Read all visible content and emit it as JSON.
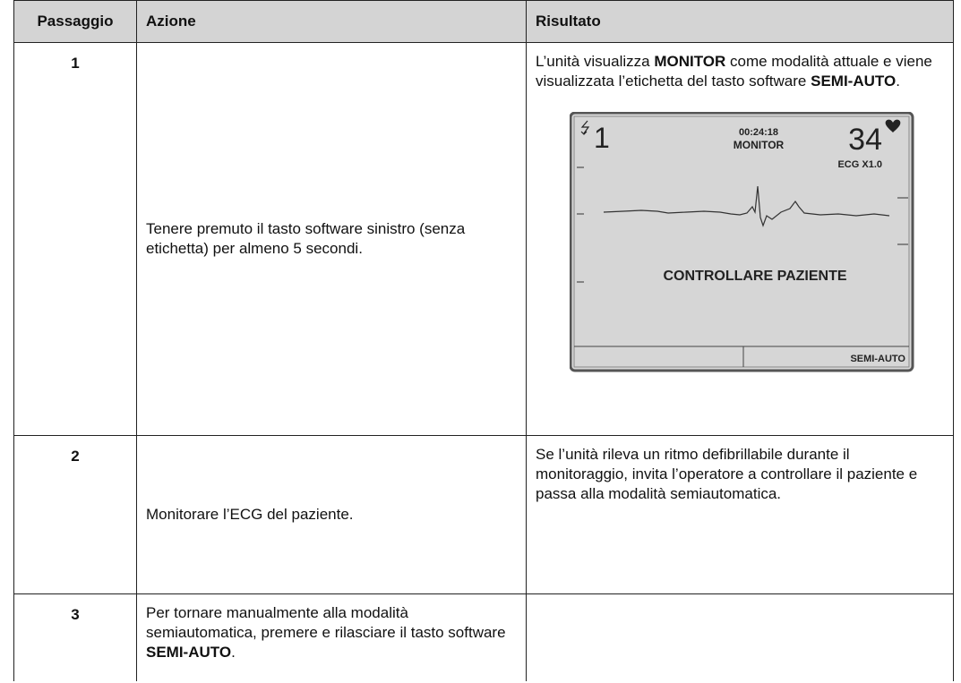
{
  "table": {
    "header": [
      "Passaggio",
      "Azione",
      "Risultato"
    ],
    "rows": [
      {
        "step": "1",
        "action": [
          "Tenere premuto il tasto software sinistro (senza etichetta) per almeno 5 secondi."
        ],
        "result": [
          "L’unità visualizza ",
          {
            "bold": "MONITOR"
          },
          " come modalità attuale e viene visualizzata l’etichetta del tasto software ",
          {
            "bold": "SEMI-AUTO"
          },
          "."
        ],
        "screen": {
          "energy": "1",
          "time": "00:24:18",
          "mode": "MONITOR",
          "heart_rate": "34",
          "ecg_gain": "ECG X1.0",
          "message": "CONTROLLARE PAZIENTE",
          "softkey": "SEMI-AUTO"
        }
      },
      {
        "step": "2",
        "action": [
          "Monitorare l’ECG del paziente."
        ],
        "result": [
          "Se l’unità rileva un ritmo defibrillabile durante il monitoraggio, invita l’operatore a controllare il paziente e passa alla modalità semiautomatica."
        ]
      },
      {
        "step": "3",
        "action": [
          "Per tornare manualmente alla modalità semiautomatica, premere e rilasciare il tasto software ",
          {
            "bold": "SEMI-AUTO"
          },
          "."
        ],
        "result": []
      }
    ]
  }
}
